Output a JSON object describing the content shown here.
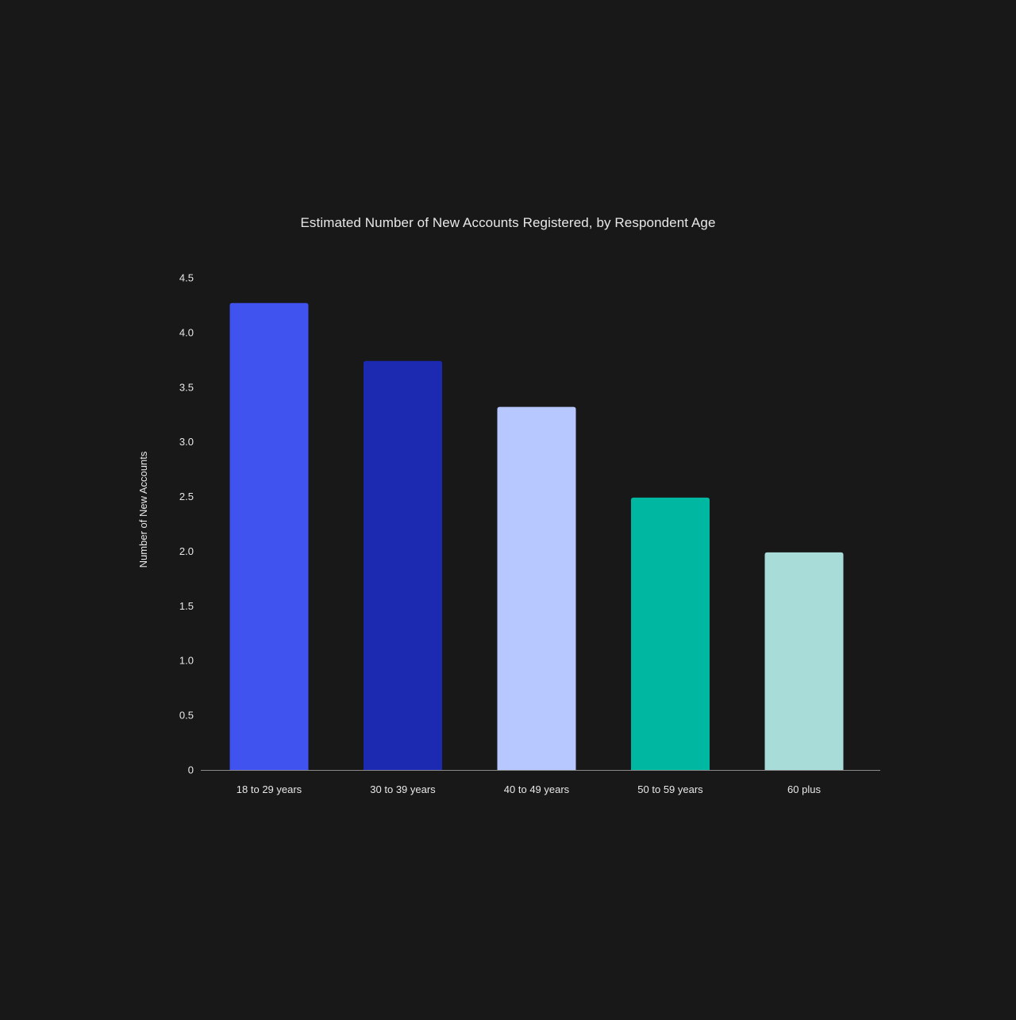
{
  "chart_data": {
    "type": "bar",
    "title": "Estimated Number of New Accounts Registered, by Respondent Age",
    "xlabel": "",
    "ylabel": "Number of New Accounts",
    "categories": [
      "18 to 29 years",
      "30 to 39 years",
      "40 to 49 years",
      "50 to 59 years",
      "60 plus"
    ],
    "values": [
      4.27,
      3.74,
      3.32,
      2.49,
      1.99
    ],
    "colors": [
      "#4053EE",
      "#1B2AB0",
      "#B6C8FF",
      "#00B8A2",
      "#A8DCD8"
    ],
    "ylim": [
      0,
      4.5
    ],
    "yticks": [
      "0",
      "0.5",
      "1.0",
      "1.5",
      "2.0",
      "2.5",
      "3.0",
      "3.5",
      "4.0",
      "4.5"
    ],
    "grid": false,
    "legend": "none"
  },
  "theme": {
    "background": "#181818",
    "text": "#e8e8e8",
    "axis_line": "#8a8a8a"
  }
}
